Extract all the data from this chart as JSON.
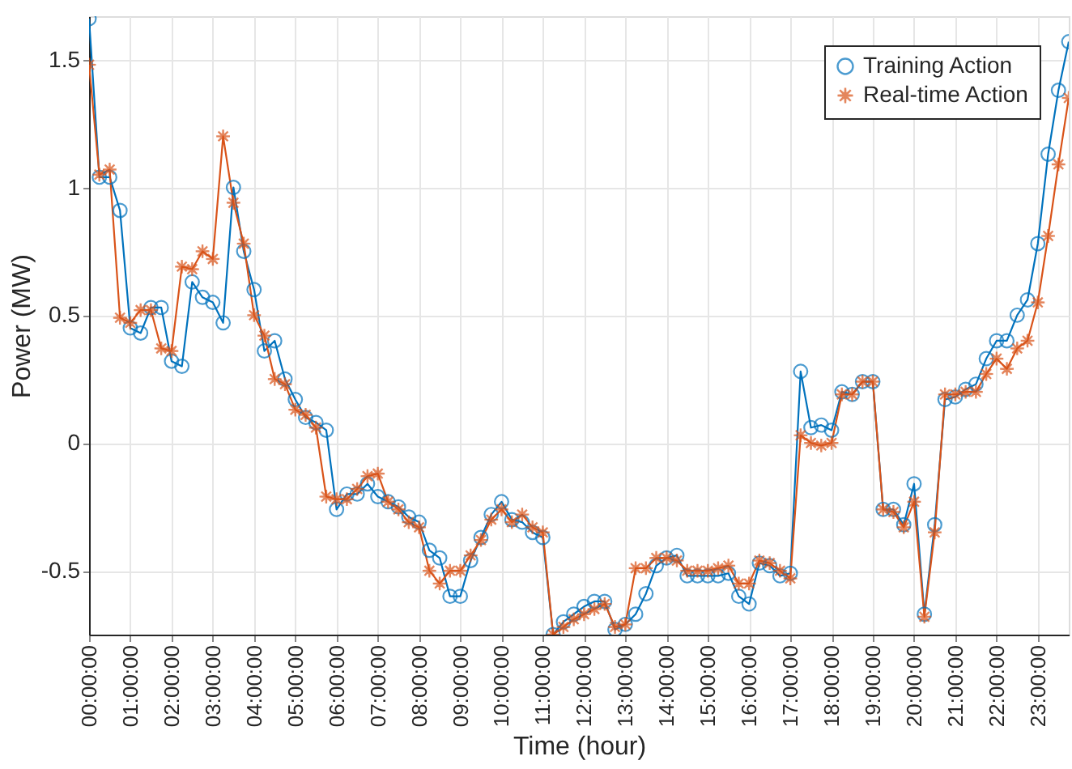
{
  "chart_data": {
    "type": "line",
    "xlabel": "Time (hour)",
    "ylabel": "Power (MW)",
    "x": [
      0,
      0.25,
      0.5,
      0.75,
      1,
      1.25,
      1.5,
      1.75,
      2,
      2.25,
      2.5,
      2.75,
      3,
      3.25,
      3.5,
      3.75,
      4,
      4.25,
      4.5,
      4.75,
      5,
      5.25,
      5.5,
      5.75,
      6,
      6.25,
      6.5,
      6.75,
      7,
      7.25,
      7.5,
      7.75,
      8,
      8.25,
      8.5,
      8.75,
      9,
      9.25,
      9.5,
      9.75,
      10,
      10.25,
      10.5,
      10.75,
      11,
      11.25,
      11.5,
      11.75,
      12,
      12.25,
      12.5,
      12.75,
      13,
      13.25,
      13.5,
      13.75,
      14,
      14.25,
      14.5,
      14.75,
      15,
      15.25,
      15.5,
      15.75,
      16,
      16.25,
      16.5,
      16.75,
      17,
      17.25,
      17.5,
      17.75,
      18,
      18.25,
      18.5,
      18.75,
      19,
      19.25,
      19.5,
      19.75,
      20,
      20.25,
      20.5,
      20.75,
      21,
      21.25,
      21.5,
      21.75,
      22,
      22.25,
      22.5,
      22.75,
      23,
      23.25,
      23.5,
      23.75
    ],
    "series": [
      {
        "name": "Training Action",
        "color": "#0072bd",
        "marker": "circle",
        "values": [
          1.66,
          1.04,
          1.04,
          0.91,
          0.45,
          0.43,
          0.53,
          0.53,
          0.32,
          0.3,
          0.63,
          0.57,
          0.55,
          0.47,
          1.0,
          0.75,
          0.6,
          0.36,
          0.4,
          0.25,
          0.17,
          0.1,
          0.08,
          0.05,
          -0.26,
          -0.2,
          -0.2,
          -0.16,
          -0.21,
          -0.23,
          -0.25,
          -0.29,
          -0.31,
          -0.42,
          -0.45,
          -0.6,
          -0.6,
          -0.46,
          -0.37,
          -0.28,
          -0.23,
          -0.3,
          -0.31,
          -0.35,
          -0.37,
          -0.75,
          -0.7,
          -0.67,
          -0.64,
          -0.62,
          -0.62,
          -0.73,
          -0.71,
          -0.67,
          -0.59,
          -0.48,
          -0.45,
          -0.44,
          -0.52,
          -0.52,
          -0.52,
          -0.52,
          -0.51,
          -0.6,
          -0.63,
          -0.47,
          -0.48,
          -0.52,
          -0.51,
          0.28,
          0.06,
          0.07,
          0.05,
          0.2,
          0.19,
          0.24,
          0.24,
          -0.26,
          -0.26,
          -0.32,
          -0.16,
          -0.67,
          -0.32,
          0.17,
          0.18,
          0.21,
          0.23,
          0.33,
          0.4,
          0.4,
          0.5,
          0.56,
          0.78,
          1.13,
          1.38,
          1.57
        ]
      },
      {
        "name": "Real-time Action",
        "color": "#d95319",
        "marker": "star",
        "values": [
          1.48,
          1.05,
          1.07,
          0.49,
          0.47,
          0.52,
          0.52,
          0.37,
          0.36,
          0.69,
          0.68,
          0.75,
          0.72,
          1.2,
          0.94,
          0.78,
          0.5,
          0.42,
          0.25,
          0.23,
          0.13,
          0.11,
          0.06,
          -0.21,
          -0.22,
          -0.22,
          -0.18,
          -0.13,
          -0.12,
          -0.23,
          -0.26,
          -0.31,
          -0.33,
          -0.5,
          -0.55,
          -0.5,
          -0.5,
          -0.44,
          -0.38,
          -0.3,
          -0.26,
          -0.31,
          -0.28,
          -0.33,
          -0.35,
          -0.75,
          -0.72,
          -0.69,
          -0.67,
          -0.65,
          -0.63,
          -0.72,
          -0.71,
          -0.49,
          -0.49,
          -0.45,
          -0.45,
          -0.46,
          -0.5,
          -0.5,
          -0.5,
          -0.49,
          -0.48,
          -0.55,
          -0.55,
          -0.46,
          -0.47,
          -0.5,
          -0.53,
          0.03,
          0.0,
          -0.01,
          0.0,
          0.19,
          0.19,
          0.24,
          0.24,
          -0.26,
          -0.27,
          -0.33,
          -0.23,
          -0.68,
          -0.35,
          0.19,
          0.19,
          0.2,
          0.2,
          0.27,
          0.33,
          0.29,
          0.37,
          0.4,
          0.55,
          0.81,
          1.09,
          1.35
        ]
      }
    ],
    "xlim": [
      0,
      23.75
    ],
    "xticks": [
      {
        "value": 0,
        "label": "00:00:00"
      },
      {
        "value": 1,
        "label": "01:00:00"
      },
      {
        "value": 2,
        "label": "02:00:00"
      },
      {
        "value": 3,
        "label": "03:00:00"
      },
      {
        "value": 4,
        "label": "04:00:00"
      },
      {
        "value": 5,
        "label": "05:00:00"
      },
      {
        "value": 6,
        "label": "06:00:00"
      },
      {
        "value": 7,
        "label": "07:00:00"
      },
      {
        "value": 8,
        "label": "08:00:00"
      },
      {
        "value": 9,
        "label": "09:00:00"
      },
      {
        "value": 10,
        "label": "10:00:00"
      },
      {
        "value": 11,
        "label": "11:00:00"
      },
      {
        "value": 12,
        "label": "12:00:00"
      },
      {
        "value": 13,
        "label": "13:00:00"
      },
      {
        "value": 14,
        "label": "14:00:00"
      },
      {
        "value": 15,
        "label": "15:00:00"
      },
      {
        "value": 16,
        "label": "16:00:00"
      },
      {
        "value": 17,
        "label": "17:00:00"
      },
      {
        "value": 18,
        "label": "18:00:00"
      },
      {
        "value": 19,
        "label": "19:00:00"
      },
      {
        "value": 20,
        "label": "20:00:00"
      },
      {
        "value": 21,
        "label": "21:00:00"
      },
      {
        "value": 22,
        "label": "22:00:00"
      },
      {
        "value": 23,
        "label": "23:00:00"
      }
    ],
    "ylim": [
      -0.75,
      1.67
    ],
    "yticks": [
      {
        "value": -0.5,
        "label": "-0.5"
      },
      {
        "value": 0,
        "label": "0"
      },
      {
        "value": 0.5,
        "label": "0.5"
      },
      {
        "value": 1,
        "label": "1"
      },
      {
        "value": 1.5,
        "label": "1.5"
      }
    ],
    "grid": true,
    "legend": "top right",
    "line_style": "solid"
  }
}
